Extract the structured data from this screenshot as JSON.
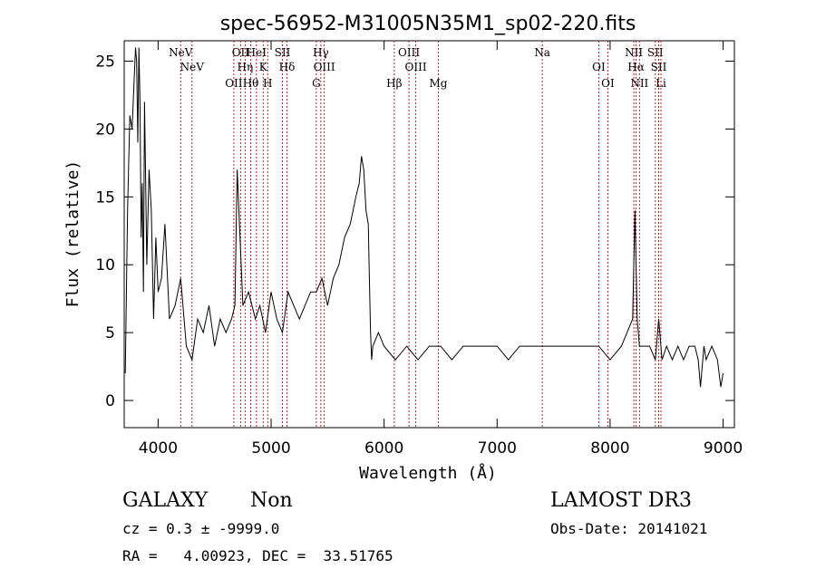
{
  "chart_data": {
    "type": "line",
    "title": "spec-56952-M31005N35M1_sp02-220.fits",
    "xlabel": "Wavelength (Å)",
    "ylabel": "Flux (relative)",
    "xlim": [
      3700,
      9100
    ],
    "ylim": [
      -2,
      26.5
    ],
    "xticks": [
      4000,
      5000,
      6000,
      7000,
      8000,
      9000
    ],
    "yticks": [
      0,
      5,
      10,
      15,
      20,
      25
    ],
    "series": [
      {
        "name": "spectrum",
        "x": [
          3710,
          3730,
          3750,
          3770,
          3790,
          3800,
          3810,
          3820,
          3830,
          3840,
          3850,
          3860,
          3870,
          3880,
          3890,
          3900,
          3920,
          3940,
          3960,
          3980,
          4000,
          4030,
          4060,
          4100,
          4150,
          4200,
          4250,
          4300,
          4350,
          4400,
          4450,
          4500,
          4550,
          4600,
          4650,
          4680,
          4700,
          4750,
          4800,
          4861,
          4900,
          4950,
          5000,
          5050,
          5100,
          5150,
          5200,
          5250,
          5300,
          5350,
          5400,
          5450,
          5500,
          5550,
          5600,
          5650,
          5700,
          5750,
          5780,
          5800,
          5820,
          5840,
          5860,
          5870,
          5880,
          5890,
          5900,
          5950,
          6000,
          6100,
          6200,
          6300,
          6400,
          6500,
          6600,
          6700,
          6800,
          6900,
          7000,
          7100,
          7200,
          7300,
          7400,
          7500,
          7600,
          7700,
          7800,
          7900,
          8000,
          8100,
          8150,
          8200,
          8220,
          8240,
          8260,
          8300,
          8350,
          8400,
          8430,
          8460,
          8500,
          8550,
          8600,
          8650,
          8700,
          8750,
          8780,
          8800,
          8830,
          8850,
          8900,
          8950,
          8980,
          9000
        ],
        "y": [
          2,
          14,
          21,
          20,
          24,
          26,
          25,
          19,
          26,
          22,
          12,
          16,
          8,
          22,
          16,
          10,
          17,
          14,
          6,
          12,
          8,
          9,
          13,
          6,
          7,
          9,
          4,
          3,
          6,
          5,
          7,
          4,
          6,
          5,
          6,
          7,
          17,
          7,
          8,
          6,
          7,
          5,
          8,
          6,
          5,
          8,
          7,
          6,
          7,
          8,
          8,
          9,
          7,
          9,
          10,
          12,
          13,
          15,
          16,
          18,
          17,
          14,
          13,
          9,
          5,
          3,
          4,
          5,
          4,
          3,
          4,
          3,
          4,
          4,
          3,
          4,
          4,
          4,
          4,
          3,
          4,
          4,
          4,
          4,
          4,
          4,
          4,
          4,
          3,
          4,
          5,
          6,
          14,
          6,
          4,
          4,
          4,
          3,
          6,
          3,
          4,
          3,
          4,
          3,
          4,
          4,
          3,
          1,
          4,
          3,
          4,
          3,
          1,
          2
        ]
      }
    ],
    "lines": [
      {
        "label": "NeV",
        "wl": 4200
      },
      {
        "label": "NeV",
        "wl": 4300
      },
      {
        "label": "OII",
        "wl": 4670
      },
      {
        "label": "OII",
        "wl": 4730
      },
      {
        "label": "Hη",
        "wl": 4770
      },
      {
        "label": "Hθ",
        "wl": 4820
      },
      {
        "label": "HeI",
        "wl": 4870
      },
      {
        "label": "K",
        "wl": 4930
      },
      {
        "label": "H",
        "wl": 4970
      },
      {
        "label": "SII",
        "wl": 5100
      },
      {
        "label": "Hδ",
        "wl": 5140
      },
      {
        "label": "G",
        "wl": 5400
      },
      {
        "label": "Hγ",
        "wl": 5440
      },
      {
        "label": "OIII",
        "wl": 5470
      },
      {
        "label": "Hβ",
        "wl": 6090
      },
      {
        "label": "OIII",
        "wl": 6220
      },
      {
        "label": "OIII",
        "wl": 6280
      },
      {
        "label": "Mg",
        "wl": 6480
      },
      {
        "label": "Na",
        "wl": 7400
      },
      {
        "label": "OI",
        "wl": 7900
      },
      {
        "label": "OI",
        "wl": 7980
      },
      {
        "label": "NII",
        "wl": 8210
      },
      {
        "label": "Hα",
        "wl": 8230
      },
      {
        "label": "NII",
        "wl": 8260
      },
      {
        "label": "SII",
        "wl": 8400
      },
      {
        "label": "SII",
        "wl": 8430
      },
      {
        "label": "Li",
        "wl": 8450
      }
    ]
  },
  "info": {
    "class": "GALAXY",
    "subclass": "Non",
    "survey": "LAMOST DR3",
    "cz": "cz = 0.3 ± -9999.0",
    "obsdate": "Obs-Date: 20141021",
    "radec": "RA =   4.00923, DEC =  33.51765"
  },
  "colors": {
    "spectrum": "#000000",
    "lines": "#b22222",
    "axes": "#000000"
  }
}
